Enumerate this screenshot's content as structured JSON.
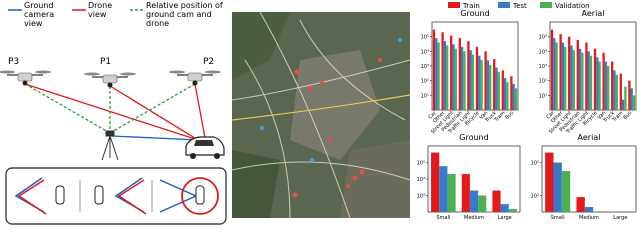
{
  "diagram": {
    "legend": [
      "Ground camera view",
      "Drone view",
      "Relative position of ground cam and drone"
    ],
    "drones": [
      "P3",
      "P1",
      "P2"
    ]
  },
  "chart_data": [
    {
      "type": "bar",
      "title": "Ground",
      "log_scale": true,
      "categories": [
        "Car",
        "Other",
        "Street Light",
        "Pedestrian",
        "Traffic Light",
        "Bicycle",
        "Van",
        "Truck",
        "Tram",
        "Bus"
      ],
      "series": [
        {
          "name": "Train",
          "color": "#e31a1c",
          "values": [
            300000,
            200000,
            120000,
            80000,
            50000,
            20000,
            10000,
            3000,
            500,
            200
          ]
        },
        {
          "name": "Test",
          "color": "#3a78c9",
          "values": [
            80000,
            50000,
            30000,
            20000,
            12000,
            5000,
            2500,
            800,
            150,
            60
          ]
        },
        {
          "name": "Validation",
          "color": "#4caf50",
          "values": [
            40000,
            25000,
            15000,
            10000,
            6000,
            2500,
            1200,
            400,
            80,
            30
          ]
        }
      ],
      "ylim": [
        1,
        1000000
      ],
      "yticks": [
        {
          "value": 10,
          "label": "10¹"
        },
        {
          "value": 100,
          "label": "10²"
        },
        {
          "value": 1000,
          "label": "10³"
        },
        {
          "value": 10000,
          "label": "10⁴"
        },
        {
          "value": 100000,
          "label": "10⁵"
        }
      ]
    },
    {
      "type": "bar",
      "title": "Aerial",
      "log_scale": true,
      "categories": [
        "Car",
        "Other",
        "Street Light",
        "Pedestrian",
        "Traffic Light",
        "Bicycle",
        "Van",
        "Truck",
        "Tram",
        "Bus"
      ],
      "series": [
        {
          "color": "#e31a1c",
          "values": [
            300000,
            150000,
            100000,
            60000,
            40000,
            15000,
            8000,
            2000,
            300,
            100
          ]
        },
        {
          "color": "#3a78c9",
          "values": [
            80000,
            40000,
            25000,
            15000,
            10000,
            4000,
            2000,
            500,
            5,
            30
          ]
        },
        {
          "color": "#4caf50",
          "values": [
            40000,
            20000,
            12000,
            8000,
            5000,
            2000,
            1000,
            250,
            40,
            10
          ]
        }
      ],
      "ylim": [
        1,
        1000000
      ],
      "yticks": [
        {
          "value": 10,
          "label": "10¹"
        },
        {
          "value": 100,
          "label": "10²"
        },
        {
          "value": 1000,
          "label": "10³"
        },
        {
          "value": 10000,
          "label": "10⁴"
        },
        {
          "value": 100000,
          "label": "10⁵"
        }
      ]
    },
    {
      "type": "bar",
      "title": "Ground",
      "log_scale": true,
      "categories": [
        "Small",
        "Medium",
        "Large"
      ],
      "series": [
        {
          "color": "#e31a1c",
          "values": [
            400000,
            20000,
            2000
          ]
        },
        {
          "color": "#3a78c9",
          "values": [
            60000,
            2000,
            300
          ]
        },
        {
          "color": "#4caf50",
          "values": [
            20000,
            1000,
            150
          ]
        }
      ],
      "ylim": [
        100,
        1000000
      ],
      "yticks": [
        {
          "value": 1000,
          "label": "10³"
        },
        {
          "value": 10000,
          "label": "10⁴"
        },
        {
          "value": 100000,
          "label": "10⁵"
        }
      ]
    },
    {
      "type": "bar",
      "title": "Aerial",
      "log_scale": true,
      "categories": [
        "Small",
        "Medium",
        "Large"
      ],
      "series": [
        {
          "color": "#e31a1c",
          "values": [
            400000,
            800,
            null
          ]
        },
        {
          "color": "#3a78c9",
          "values": [
            100000,
            200,
            null
          ]
        },
        {
          "color": "#4caf50",
          "values": [
            30000,
            110,
            null
          ]
        }
      ],
      "ylim": [
        100,
        1000000
      ],
      "yticks": [
        {
          "value": 1000,
          "label": "10³"
        },
        {
          "value": 100000,
          "label": "10⁵"
        }
      ]
    }
  ]
}
